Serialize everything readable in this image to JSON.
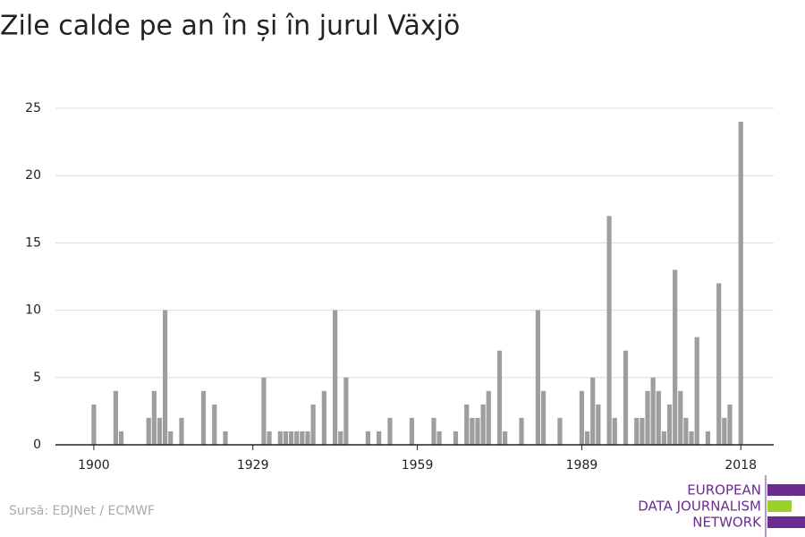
{
  "chart_data": {
    "type": "bar",
    "title": "Zile calde pe an în și în jurul Växjö",
    "x": [
      1900,
      1901,
      1902,
      1903,
      1904,
      1905,
      1906,
      1907,
      1908,
      1909,
      1910,
      1911,
      1912,
      1913,
      1914,
      1915,
      1916,
      1917,
      1918,
      1919,
      1920,
      1921,
      1922,
      1923,
      1924,
      1925,
      1926,
      1927,
      1928,
      1929,
      1930,
      1931,
      1932,
      1933,
      1934,
      1935,
      1936,
      1937,
      1938,
      1939,
      1940,
      1941,
      1942,
      1943,
      1944,
      1945,
      1946,
      1947,
      1948,
      1949,
      1950,
      1951,
      1952,
      1953,
      1954,
      1955,
      1956,
      1957,
      1958,
      1959,
      1960,
      1961,
      1962,
      1963,
      1964,
      1965,
      1966,
      1967,
      1968,
      1969,
      1970,
      1971,
      1972,
      1973,
      1974,
      1975,
      1976,
      1977,
      1978,
      1979,
      1980,
      1981,
      1982,
      1983,
      1984,
      1985,
      1986,
      1987,
      1988,
      1989,
      1990,
      1991,
      1992,
      1993,
      1994,
      1995,
      1996,
      1997,
      1998,
      1999,
      2000,
      2001,
      2002,
      2003,
      2004,
      2005,
      2006,
      2007,
      2008,
      2009,
      2010,
      2011,
      2012,
      2013,
      2014,
      2015,
      2016,
      2017,
      2018
    ],
    "values": [
      3,
      0,
      0,
      0,
      4,
      1,
      0,
      0,
      0,
      0,
      2,
      4,
      2,
      10,
      1,
      0,
      2,
      0,
      0,
      0,
      4,
      0,
      3,
      0,
      1,
      0,
      0,
      0,
      0,
      0,
      0,
      5,
      1,
      0,
      1,
      1,
      1,
      1,
      1,
      1,
      3,
      0,
      4,
      0,
      10,
      1,
      5,
      0,
      0,
      0,
      1,
      0,
      1,
      0,
      2,
      0,
      0,
      0,
      2,
      0,
      0,
      0,
      2,
      1,
      0,
      0,
      1,
      0,
      3,
      2,
      2,
      3,
      4,
      0,
      7,
      1,
      0,
      0,
      2,
      0,
      0,
      10,
      4,
      0,
      0,
      2,
      0,
      0,
      0,
      4,
      1,
      5,
      3,
      0,
      17,
      2,
      0,
      7,
      0,
      2,
      2,
      4,
      5,
      4,
      1,
      3,
      13,
      4,
      2,
      1,
      8,
      0,
      1,
      0,
      12,
      2,
      3,
      0,
      24
    ],
    "color": "#9e9e9e",
    "xlim": [
      1893,
      2024
    ],
    "xticks": [
      1900,
      1929,
      1959,
      1989,
      2018
    ],
    "ylim": [
      0,
      25
    ],
    "yticks": [
      0,
      5,
      10,
      15,
      20,
      25
    ],
    "grid": true,
    "source": "Sursă: EDJNet / ECMWF"
  },
  "logo": {
    "lines": [
      "EUROPEAN",
      "DATA JOURNALISM",
      "NETWORK"
    ]
  }
}
